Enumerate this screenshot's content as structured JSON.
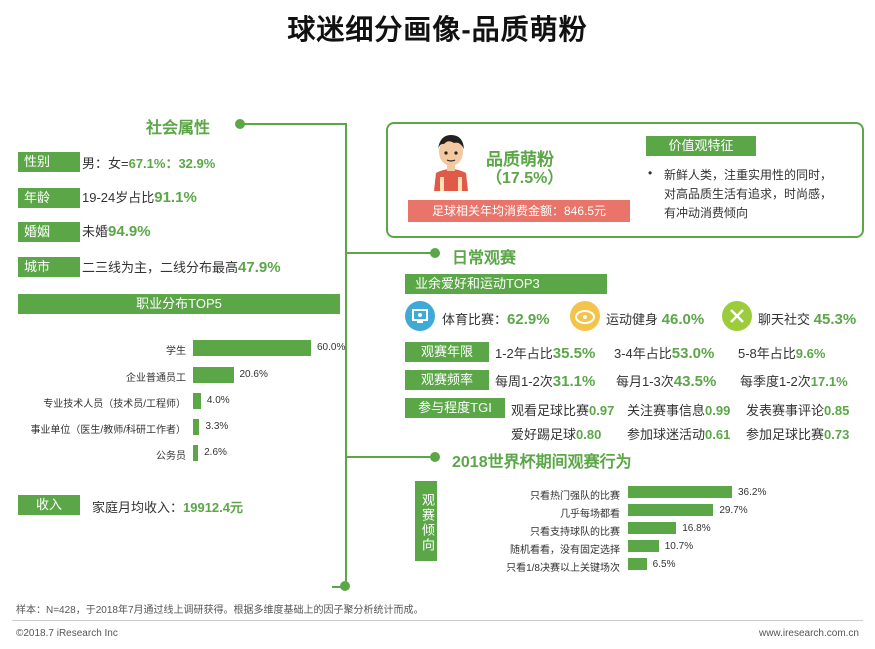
{
  "title": "球迷细分画像-品质萌粉",
  "left": {
    "section_title": "社会属性",
    "attrs": [
      {
        "tag": "性别",
        "pre": "男：女=",
        "hl": "67.1%：32.9%",
        "post": ""
      },
      {
        "tag": "年龄",
        "pre": "19-24岁占比",
        "hl": "91.1%",
        "post": ""
      },
      {
        "tag": "婚姻",
        "pre": "未婚",
        "hl": "94.9%",
        "post": ""
      },
      {
        "tag": "城市",
        "pre": "二三线为主，二线分布最高",
        "hl": "47.9%",
        "post": ""
      }
    ],
    "occupation_title": "职业分布TOP5",
    "income_tag": "收入",
    "income_pre": "家庭月均收入：",
    "income_hl": "19912.4元"
  },
  "profile": {
    "name": "品质萌粉",
    "pct": "（17.5%）",
    "spend": "足球相关年均消费金额：846.5元",
    "values_title": "价值观特征",
    "values_text": [
      "新鲜人类，注重实用性的同时，",
      "对高品质生活有追求，时尚感，",
      "有冲动消费倾向"
    ]
  },
  "daily": {
    "section_title": "日常观赛",
    "hobby_title": "业余爱好和运动TOP3",
    "hobbies": [
      {
        "label": "体育比赛：",
        "value": "62.9%",
        "icon": "monitor-icon",
        "color": "#3fa9d8"
      },
      {
        "label": "运动健身",
        "value": "46.0%",
        "icon": "fitness-icon",
        "color": "#f3c44c"
      },
      {
        "label": "聊天社交",
        "value": "45.3%",
        "icon": "chat-icon",
        "color": "#9ccc3c"
      }
    ],
    "rows": [
      {
        "tag": "观赛年限",
        "items": [
          {
            "pre": "1-2年占比",
            "hl": "35.5%"
          },
          {
            "pre": "3-4年占比",
            "hl": "53.0%"
          },
          {
            "pre": "5-8年占比",
            "hl": "9.6%"
          }
        ]
      },
      {
        "tag": "观赛频率",
        "items": [
          {
            "pre": "每周1-2次",
            "hl": "31.1%"
          },
          {
            "pre": "每月1-3次",
            "hl": "43.5%"
          },
          {
            "pre": "每季度1-2次",
            "hl": "17.1%"
          }
        ]
      },
      {
        "tag": "参与程度TGI",
        "items": [
          {
            "pre": "观看足球比赛",
            "hl": "0.97"
          },
          {
            "pre": "关注赛事信息",
            "hl": "0.99"
          },
          {
            "pre": "发表赛事评论",
            "hl": "0.85"
          },
          {
            "pre": "爱好踢足球",
            "hl": "0.80"
          },
          {
            "pre": "参加球迷活动",
            "hl": "0.61"
          },
          {
            "pre": "参加足球比赛",
            "hl": "0.73"
          }
        ]
      }
    ]
  },
  "worldcup": {
    "section_title": "2018世界杯期间观赛行为",
    "side_tag": "观赛倾向"
  },
  "footer": {
    "note": "样本：N=428，于2018年7月通过线上调研获得。根据多维度基础上的因子聚分析统计而成。",
    "copyright": "©2018.7 iResearch Inc",
    "site": "www.iresearch.com.cn"
  },
  "colors": {
    "accent": "#5ba748",
    "spend_bg": "#e8746a"
  },
  "chart_data": [
    {
      "type": "bar",
      "orientation": "horizontal",
      "title": "职业分布TOP5",
      "categories": [
        "学生",
        "企业普通员工",
        "专业技术人员（技术员/工程师）",
        "事业单位（医生/教师/科研工作者）",
        "公务员"
      ],
      "values": [
        60.0,
        20.6,
        4.0,
        3.3,
        2.6
      ],
      "value_labels": [
        "60.0%",
        "20.6%",
        "4.0%",
        "3.3%",
        "2.6%"
      ],
      "xlim": [
        0,
        60
      ]
    },
    {
      "type": "bar",
      "orientation": "horizontal",
      "title": "2018世界杯期间观赛行为",
      "categories": [
        "只看热门强队的比赛",
        "几乎每场都看",
        "只看支持球队的比赛",
        "随机看看，没有固定选择",
        "只看1/8决赛以上关键场次"
      ],
      "values": [
        36.2,
        29.7,
        16.8,
        10.7,
        6.5
      ],
      "value_labels": [
        "36.2%",
        "29.7%",
        "16.8%",
        "10.7%",
        "6.5%"
      ],
      "xlim": [
        0,
        36.2
      ]
    }
  ]
}
